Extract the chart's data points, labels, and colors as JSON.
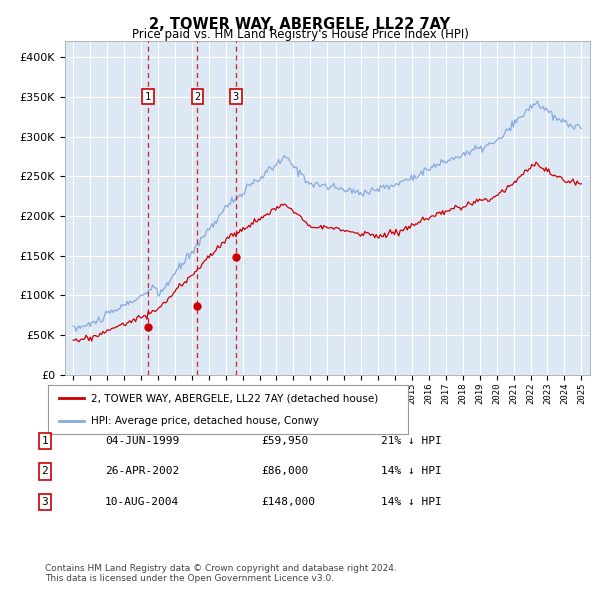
{
  "title1": "2, TOWER WAY, ABERGELE, LL22 7AY",
  "title2": "Price paid vs. HM Land Registry's House Price Index (HPI)",
  "bg_color": "#dde8f5",
  "plot_bg": "#dde8f5",
  "grid_color": "#ffffff",
  "hpi_color": "#88aadd",
  "price_color": "#cc0000",
  "sale_marker_color": "#cc0000",
  "yticks": [
    0,
    50000,
    100000,
    150000,
    200000,
    250000,
    300000,
    350000,
    400000
  ],
  "ytick_labels": [
    "£0",
    "£50K",
    "£100K",
    "£150K",
    "£200K",
    "£250K",
    "£300K",
    "£350K",
    "£400K"
  ],
  "xticks": [
    1995,
    1996,
    1997,
    1998,
    1999,
    2000,
    2001,
    2002,
    2003,
    2004,
    2005,
    2006,
    2007,
    2008,
    2009,
    2010,
    2011,
    2012,
    2013,
    2014,
    2015,
    2016,
    2017,
    2018,
    2019,
    2020,
    2021,
    2022,
    2023,
    2024,
    2025
  ],
  "xmin": 1994.5,
  "xmax": 2025.5,
  "ymin": 0,
  "ymax": 420000,
  "sale_dates": [
    1999.42,
    2002.32,
    2004.6
  ],
  "sale_prices": [
    59950,
    86000,
    148000
  ],
  "sale_labels": [
    "1",
    "2",
    "3"
  ],
  "legend_price_label": "2, TOWER WAY, ABERGELE, LL22 7AY (detached house)",
  "legend_hpi_label": "HPI: Average price, detached house, Conwy",
  "table_rows": [
    [
      "1",
      "04-JUN-1999",
      "£59,950",
      "21% ↓ HPI"
    ],
    [
      "2",
      "26-APR-2002",
      "£86,000",
      "14% ↓ HPI"
    ],
    [
      "3",
      "10-AUG-2004",
      "£148,000",
      "14% ↓ HPI"
    ]
  ],
  "footnote": "Contains HM Land Registry data © Crown copyright and database right 2024.\nThis data is licensed under the Open Government Licence v3.0."
}
